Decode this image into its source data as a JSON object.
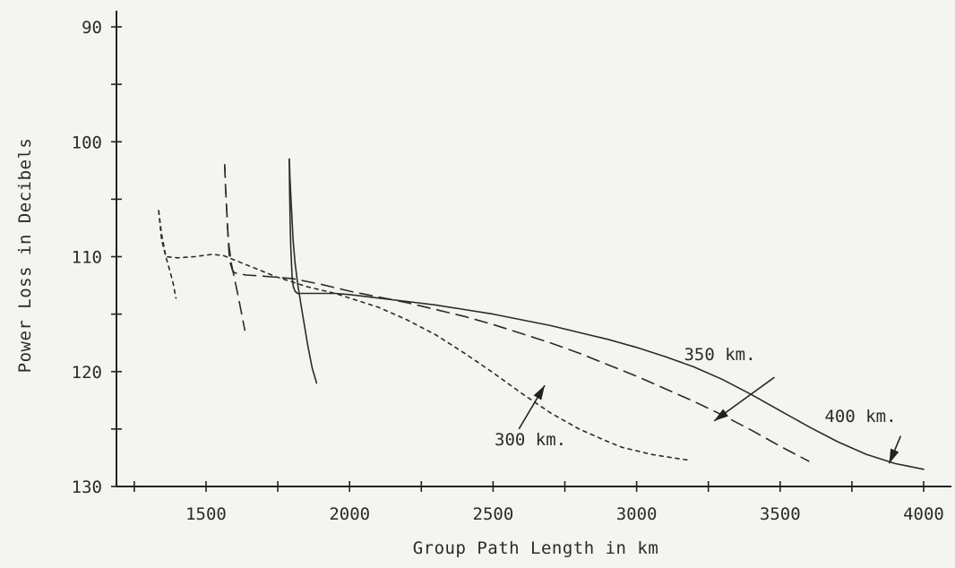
{
  "chart_data": {
    "type": "line",
    "xlabel": "Group Path Length in km",
    "ylabel": "Power Loss in Decibels",
    "xlim": [
      1200,
      4100
    ],
    "ylim": [
      130,
      89
    ],
    "y_inverted": true,
    "x_ticks": [
      1500,
      2000,
      2500,
      3000,
      3500,
      4000
    ],
    "y_ticks": [
      90,
      100,
      110,
      120,
      130
    ],
    "grid": false,
    "legend": "none",
    "series": [
      {
        "name": "300 km.",
        "style": "dotted",
        "branches": [
          {
            "x": [
              1335,
              1345,
              1360,
              1375,
              1385,
              1395
            ],
            "y": [
              106,
              108,
              110,
              111.3,
              112.3,
              113.6
            ]
          },
          {
            "x": [
              1335,
              1345,
              1360,
              1400,
              1460,
              1520,
              1560,
              1600,
              1650,
              1700,
              1750,
              1800,
              1850,
              1900,
              1950,
              2000,
              2100,
              2200,
              2300,
              2400,
              2500,
              2600,
              2700,
              2800,
              2900,
              2950,
              3000,
              3050,
              3100,
              3150,
              3180
            ],
            "y": [
              106,
              108.5,
              110,
              110.1,
              110.0,
              109.8,
              109.9,
              110.3,
              110.8,
              111.3,
              111.8,
              112.2,
              112.6,
              112.9,
              113.2,
              113.6,
              114.4,
              115.5,
              116.8,
              118.4,
              120.1,
              121.9,
              123.6,
              125.0,
              126.1,
              126.6,
              126.9,
              127.2,
              127.4,
              127.6,
              127.7
            ]
          }
        ]
      },
      {
        "name": "350 km.",
        "style": "dashed",
        "branches": [
          {
            "x": [
              1565,
              1568,
              1572,
              1575,
              1580,
              1588,
              1600,
              1615,
              1628,
              1635
            ],
            "y": [
              102,
              104,
              106,
              107.5,
              109,
              110.6,
              112,
              113.8,
              115.5,
              116.4
            ]
          },
          {
            "x": [
              1565,
              1568,
              1572,
              1576,
              1580,
              1585,
              1592,
              1600,
              1615,
              1640,
              1700,
              1800,
              1900,
              2000,
              2100,
              2200,
              2300,
              2400,
              2500,
              2600,
              2700,
              2800,
              2900,
              3000,
              3100,
              3200,
              3300,
              3400,
              3500,
              3600
            ],
            "y": [
              102,
              104,
              106,
              108,
              109.6,
              110.6,
              111.2,
              111.4,
              111.5,
              111.6,
              111.7,
              111.9,
              112.4,
              113.0,
              113.5,
              114.0,
              114.6,
              115.2,
              115.9,
              116.7,
              117.5,
              118.4,
              119.4,
              120.4,
              121.5,
              122.6,
              123.8,
              125.1,
              126.5,
              127.8
            ]
          }
        ]
      },
      {
        "name": "400 km.",
        "style": "solid",
        "branches": [
          {
            "x": [
              1790,
              1792,
              1795,
              1798,
              1803,
              1810,
              1820,
              1835,
              1855,
              1870,
              1885
            ],
            "y": [
              101.5,
              103,
              104.5,
              106,
              108.5,
              110.5,
              112.5,
              114.8,
              117.8,
              119.7,
              121.0
            ]
          },
          {
            "x": [
              1790,
              1791,
              1793,
              1795,
              1798,
              1800,
              1804,
              1810,
              1818,
              1830,
              1850,
              1900,
              1950,
              2000,
              2100,
              2200,
              2300,
              2400,
              2500,
              2600,
              2700,
              2800,
              2900,
              3000,
              3100,
              3200,
              3300,
              3400,
              3500,
              3600,
              3700,
              3800,
              3900,
              4000
            ],
            "y": [
              101.5,
              104,
              107,
              109,
              110.8,
              111.8,
              112.6,
              113.0,
              113.2,
              113.2,
              113.2,
              113.2,
              113.2,
              113.3,
              113.6,
              113.9,
              114.2,
              114.6,
              115.0,
              115.5,
              116.0,
              116.6,
              117.2,
              117.9,
              118.7,
              119.6,
              120.7,
              122.0,
              123.4,
              124.8,
              126.1,
              127.2,
              128.0,
              128.5
            ]
          }
        ]
      }
    ],
    "annotations": [
      {
        "text": "300 km.",
        "label_x": 2630,
        "label_y": 126.4,
        "arrow_from": [
          2590,
          125.0
        ],
        "arrow_to": [
          2680,
          121.2
        ]
      },
      {
        "text": "350 km.",
        "label_x": 3290,
        "label_y": 119.0,
        "arrow_from": [
          3480,
          120.5
        ],
        "arrow_to": [
          3270,
          124.3
        ]
      },
      {
        "text": "400 km.",
        "label_x": 3780,
        "label_y": 124.4,
        "arrow_from": [
          3920,
          125.6
        ],
        "arrow_to": [
          3880,
          128.0
        ]
      }
    ]
  }
}
